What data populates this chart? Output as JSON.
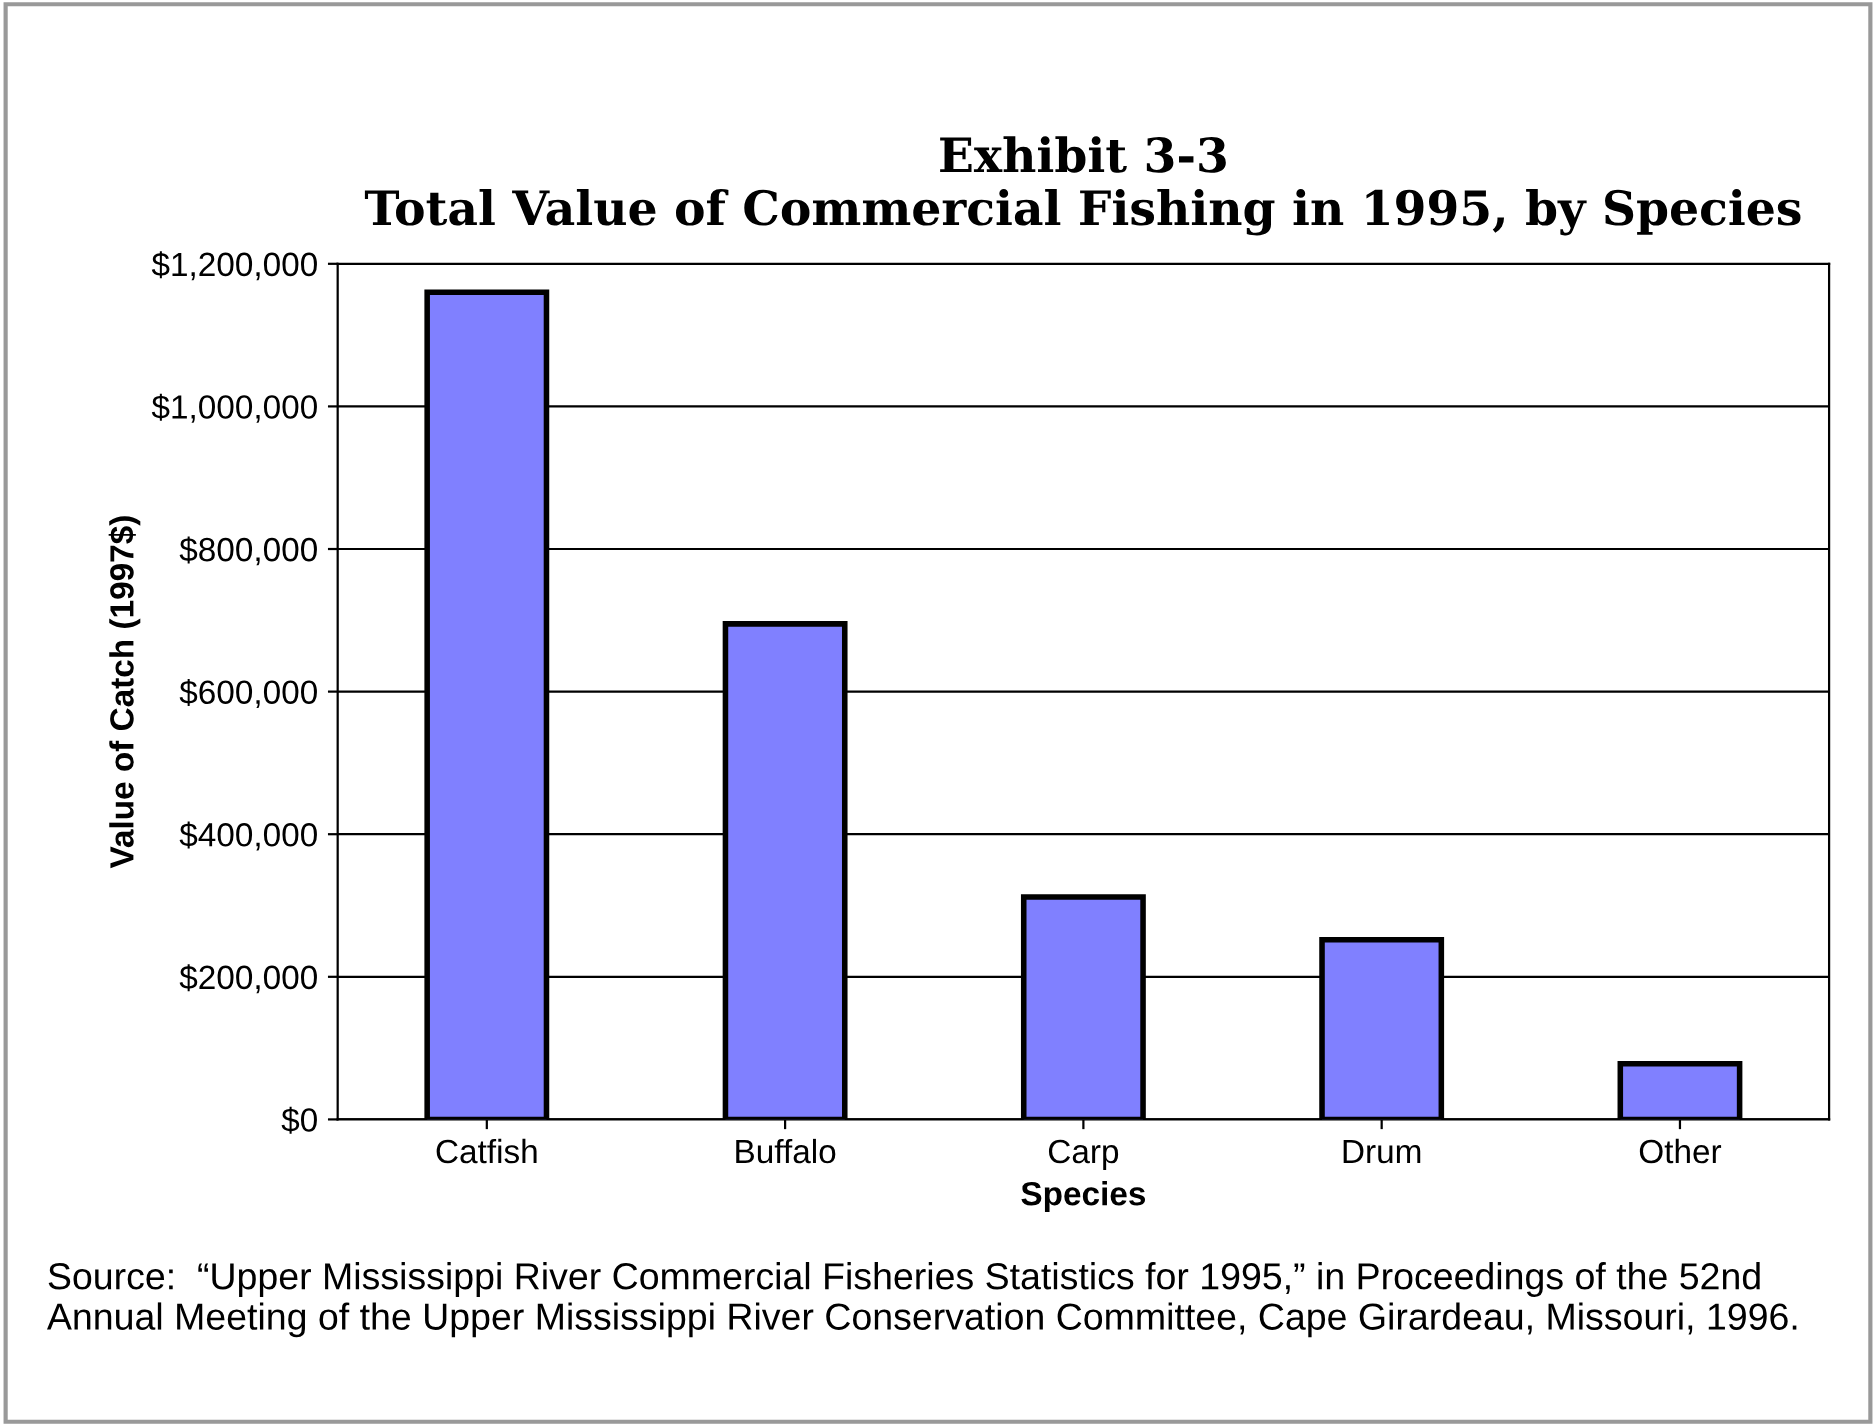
{
  "chart_data": {
    "type": "bar",
    "title": "Exhibit 3-3\nTotal Value of Commercial Fishing in 1995, by Species",
    "categories": [
      "Catfish",
      "Buffalo",
      "Carp",
      "Drum",
      "Other"
    ],
    "values": [
      1160000,
      695000,
      312000,
      252000,
      78000
    ],
    "color": "#8080ff",
    "xlabel": "Species",
    "ylabel": "Value of Catch (1997$)",
    "ylim": [
      0,
      1200000
    ],
    "yticks": [
      {
        "value": 0,
        "label": "$0"
      },
      {
        "value": 200000,
        "label": "$200,000"
      },
      {
        "value": 400000,
        "label": "$400,000"
      },
      {
        "value": 600000,
        "label": "$600,000"
      },
      {
        "value": 800000,
        "label": "$800,000"
      },
      {
        "value": 1000000,
        "label": "$1,000,000"
      },
      {
        "value": 1200000,
        "label": "$1,200,000"
      }
    ],
    "grid": "y",
    "legend": false,
    "annotations": [
      "Source:  “Upper Mississippi River Commercial Fisheries Statistics for 1995,” in Proceedings of the 52nd Annual Meeting of the Upper Mississippi River Conservation Committee, Cape Girardeau, Missouri, 1996."
    ]
  }
}
